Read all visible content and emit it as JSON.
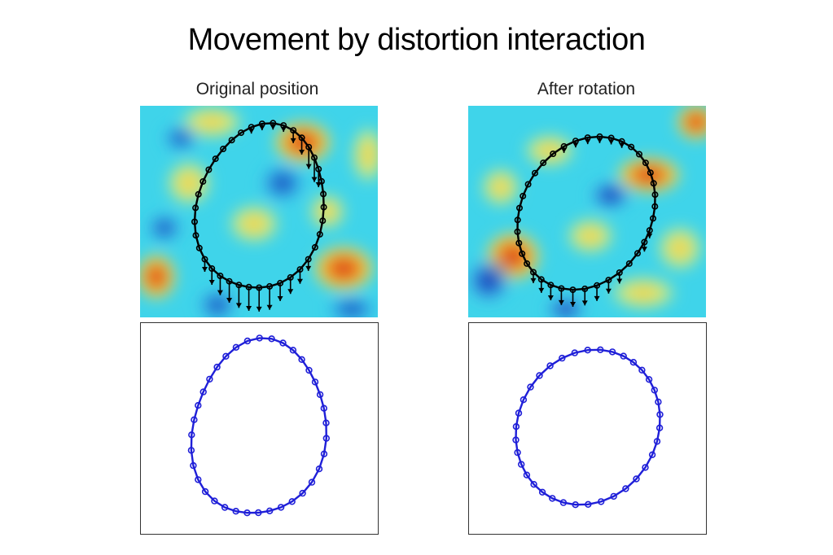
{
  "slide": {
    "title": "Movement by distortion interaction"
  },
  "columns": [
    {
      "label": "Original position"
    },
    {
      "label": "After rotation"
    }
  ],
  "colors": {
    "contour_black": "#000000",
    "contour_blue": "#1f1fd8",
    "field_background": "#33d6e8",
    "field_hot": "#d93a1a",
    "field_warm": "#f2d43a",
    "field_cold": "#1a3cb8"
  }
}
